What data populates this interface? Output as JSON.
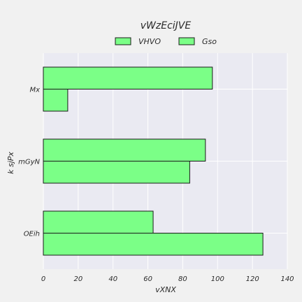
{
  "chart_data": {
    "type": "bar",
    "orientation": "horizontal",
    "title": "vWzEciJVE",
    "xlabel": "vXNX",
    "ylabel": "k sjPx",
    "categories": [
      "Mx",
      "mGyN",
      "OEih"
    ],
    "series": [
      {
        "name": "VHVO",
        "values": [
          97,
          93,
          63
        ],
        "color": "#7bff87"
      },
      {
        "name": "Gso",
        "values": [
          14,
          84,
          126
        ],
        "color": "#7bff87"
      }
    ],
    "xlim": [
      0,
      140
    ],
    "xticks": [
      0,
      20,
      40,
      60,
      80,
      100,
      120,
      140
    ],
    "grid": true,
    "legend_position": "top-center",
    "background_color": "#eaeaf2",
    "figure_color": "#f1f1f1"
  }
}
